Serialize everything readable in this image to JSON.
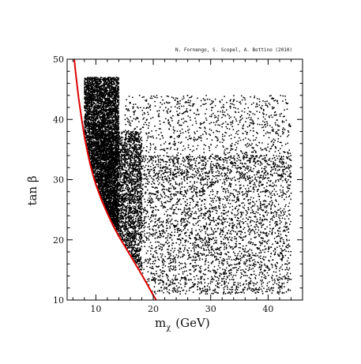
{
  "credit": "N. Fornengo, S. Scopel, A. Bottino (2010)",
  "chart_data": {
    "type": "scatter",
    "title": "",
    "xlabel": "mχ (GeV)",
    "xlabel_base": "m",
    "xlabel_sub": "χ",
    "xlabel_unit": "(GeV)",
    "ylabel": "tan β",
    "xlim": [
      5,
      46
    ],
    "ylim": [
      10,
      50
    ],
    "x_ticks": [
      10,
      20,
      30,
      40
    ],
    "x_tick_labels": [
      "10",
      "20",
      "30",
      "40"
    ],
    "y_ticks": [
      10,
      20,
      30,
      40,
      50
    ],
    "y_tick_labels": [
      "10",
      "20",
      "30",
      "40",
      "50"
    ],
    "grid": false,
    "legend": "none",
    "boundary_curve": {
      "name": "",
      "color": "#dd0000",
      "points": [
        [
          6.24,
          50
        ],
        [
          6.5,
          47.6
        ],
        [
          7,
          43.6
        ],
        [
          7.5,
          40.2
        ],
        [
          8,
          37.2
        ],
        [
          8.5,
          34.8
        ],
        [
          9,
          32.6
        ],
        [
          9.5,
          30.8
        ],
        [
          10,
          29.2
        ],
        [
          11,
          26.6
        ],
        [
          12,
          24.4
        ],
        [
          13,
          22.4
        ],
        [
          14,
          20.6
        ],
        [
          15,
          19.0
        ],
        [
          16,
          17.4
        ],
        [
          17,
          15.8
        ],
        [
          18,
          14.2
        ],
        [
          19,
          12.5
        ],
        [
          20,
          10.8
        ],
        [
          20.5,
          10
        ]
      ]
    },
    "scatter_series": {
      "name": "",
      "color": "#000000",
      "point_count_estimate": 12000,
      "regions": [
        {
          "x": [
            8.0,
            14.0
          ],
          "y": [
            17,
            47
          ],
          "weight": 0.4
        },
        {
          "x": [
            10.0,
            18.0
          ],
          "y": [
            14,
            38
          ],
          "weight": 0.2
        },
        {
          "x": [
            14.0,
            44.0
          ],
          "y": [
            11,
            34
          ],
          "weight": 0.3
        },
        {
          "x": [
            15.0,
            44.0
          ],
          "y": [
            30,
            44
          ],
          "weight": 0.1
        }
      ]
    }
  }
}
